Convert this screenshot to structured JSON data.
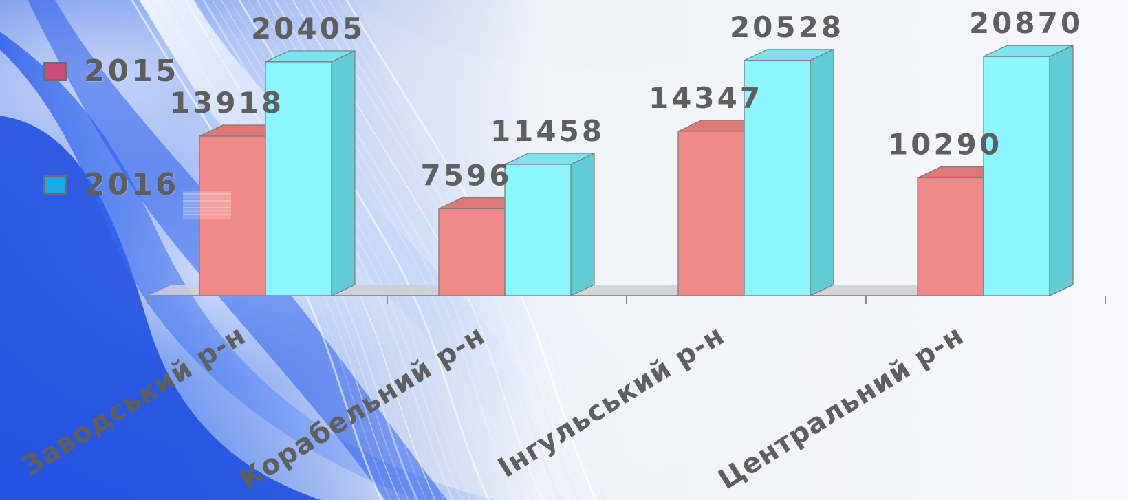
{
  "chart_data": {
    "type": "bar",
    "categories": [
      "Заводський р-н",
      "Корабельний р-н",
      "Інгульський р-н",
      "Центральний р-н"
    ],
    "series": [
      {
        "name": "2015",
        "values": [
          13918,
          7596,
          14347,
          10290
        ],
        "color": "#f08a89"
      },
      {
        "name": "2016",
        "values": [
          20405,
          11458,
          20528,
          20870
        ],
        "color": "#8cf5ff"
      }
    ],
    "legend_position": "top-left",
    "data_labels": true,
    "grid": false,
    "ylim": [
      0,
      21000
    ],
    "theme": {
      "background_gradient_start": "#2d5fe2",
      "background_gradient_end": "#f5f7fb",
      "text_color": "#5f5f5f",
      "axis_color": "#9a9a9a"
    }
  }
}
